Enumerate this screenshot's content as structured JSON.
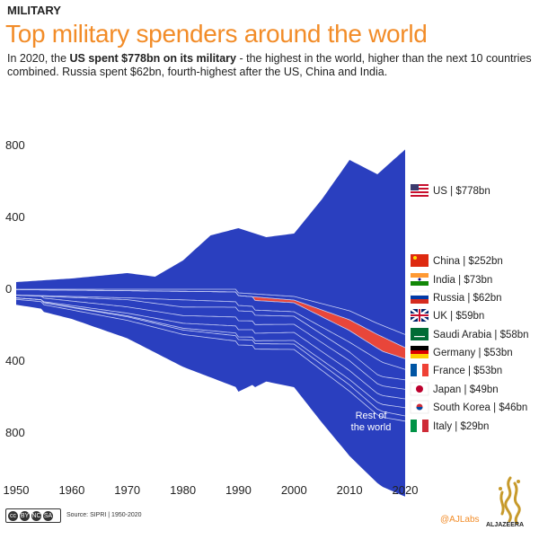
{
  "header": {
    "kicker": "MILITARY",
    "title": "Top military spenders around the world",
    "subtitle_pre": "In 2020, the ",
    "subtitle_bold": "US spent $778bn on its military",
    "subtitle_post": " - the highest in the world, higher than the next 10 countries combined. Russia spent $62bn, fourth-highest after the US, China and India."
  },
  "colors": {
    "blue": "#2a3fbf",
    "russia": "#e8463a",
    "line": "#c9d0f5",
    "title": "#f28c28"
  },
  "chart_data": {
    "type": "area",
    "x_ticks": [
      "1950",
      "1960",
      "1970",
      "1980",
      "1990",
      "2000",
      "2010",
      "2020"
    ],
    "y_ticks": [
      "800",
      "400",
      "0",
      "400",
      "800"
    ],
    "xlim": [
      1950,
      2020
    ],
    "ylim": [
      -1000,
      1000
    ],
    "series": [
      {
        "name": "US | $778bn",
        "flag": "us",
        "points": [
          [
            1950,
            40
          ],
          [
            1960,
            60
          ],
          [
            1970,
            90
          ],
          [
            1975,
            70
          ],
          [
            1980,
            160
          ],
          [
            1985,
            300
          ],
          [
            1990,
            340
          ],
          [
            1995,
            290
          ],
          [
            2000,
            310
          ],
          [
            2005,
            500
          ],
          [
            2010,
            720
          ],
          [
            2015,
            640
          ],
          [
            2020,
            778
          ]
        ]
      },
      {
        "name": "China | $252bn",
        "flag": "china",
        "points": [
          [
            1990,
            20
          ],
          [
            2000,
            40
          ],
          [
            2010,
            120
          ],
          [
            2015,
            190
          ],
          [
            2020,
            252
          ]
        ]
      },
      {
        "name": "India | $73bn",
        "flag": "india",
        "points": [
          [
            1950,
            2
          ],
          [
            1970,
            8
          ],
          [
            1990,
            15
          ],
          [
            2000,
            20
          ],
          [
            2010,
            50
          ],
          [
            2020,
            73
          ]
        ]
      },
      {
        "name": "Russia | $62bn",
        "flag": "russia",
        "points": [
          [
            1993,
            20
          ],
          [
            2000,
            15
          ],
          [
            2010,
            60
          ],
          [
            2016,
            80
          ],
          [
            2020,
            62
          ]
        ]
      },
      {
        "name": "UK | $59bn",
        "flag": "uk",
        "points": [
          [
            1950,
            30
          ],
          [
            1970,
            40
          ],
          [
            1990,
            55
          ],
          [
            2000,
            50
          ],
          [
            2010,
            65
          ],
          [
            2020,
            59
          ]
        ]
      },
      {
        "name": "Saudi Arabia | $58bn",
        "flag": "saudi",
        "points": [
          [
            1950,
            1
          ],
          [
            1970,
            10
          ],
          [
            1980,
            40
          ],
          [
            1990,
            30
          ],
          [
            2000,
            25
          ],
          [
            2010,
            55
          ],
          [
            2015,
            85
          ],
          [
            2020,
            58
          ]
        ]
      },
      {
        "name": "Germany | $53bn",
        "flag": "germany",
        "points": [
          [
            1955,
            10
          ],
          [
            1970,
            40
          ],
          [
            1990,
            55
          ],
          [
            2000,
            45
          ],
          [
            2010,
            48
          ],
          [
            2020,
            53
          ]
        ]
      },
      {
        "name": "France | $53bn",
        "flag": "france",
        "points": [
          [
            1950,
            15
          ],
          [
            1970,
            35
          ],
          [
            1990,
            50
          ],
          [
            2000,
            45
          ],
          [
            2010,
            55
          ],
          [
            2020,
            53
          ]
        ]
      },
      {
        "name": "Japan | $49bn",
        "flag": "japan",
        "points": [
          [
            1955,
            5
          ],
          [
            1970,
            15
          ],
          [
            1990,
            40
          ],
          [
            2000,
            45
          ],
          [
            2010,
            50
          ],
          [
            2020,
            49
          ]
        ]
      },
      {
        "name": "South Korea | $46bn",
        "flag": "korea",
        "points": [
          [
            1955,
            1
          ],
          [
            1970,
            5
          ],
          [
            1990,
            15
          ],
          [
            2000,
            20
          ],
          [
            2010,
            30
          ],
          [
            2020,
            46
          ]
        ]
      },
      {
        "name": "Italy | $29bn",
        "flag": "italy",
        "points": [
          [
            1950,
            8
          ],
          [
            1970,
            20
          ],
          [
            1990,
            30
          ],
          [
            2000,
            30
          ],
          [
            2010,
            35
          ],
          [
            2020,
            29
          ]
        ]
      },
      {
        "name": "Rest of the world",
        "points": [
          [
            1950,
            30
          ],
          [
            1960,
            50
          ],
          [
            1970,
            100
          ],
          [
            1980,
            180
          ],
          [
            1985,
            220
          ],
          [
            1990,
            260
          ],
          [
            1995,
            180
          ],
          [
            2000,
            210
          ],
          [
            2005,
            290
          ],
          [
            2010,
            360
          ],
          [
            2015,
            380
          ],
          [
            2020,
            420
          ]
        ]
      }
    ],
    "annotation": "Rest of the world"
  },
  "footer": {
    "source": "Source: SIPRI | 1950-2020",
    "handle": "@AJLabs",
    "brand": "ALJAZEERA",
    "license": [
      "cc",
      "BY",
      "NC",
      "SA"
    ]
  }
}
